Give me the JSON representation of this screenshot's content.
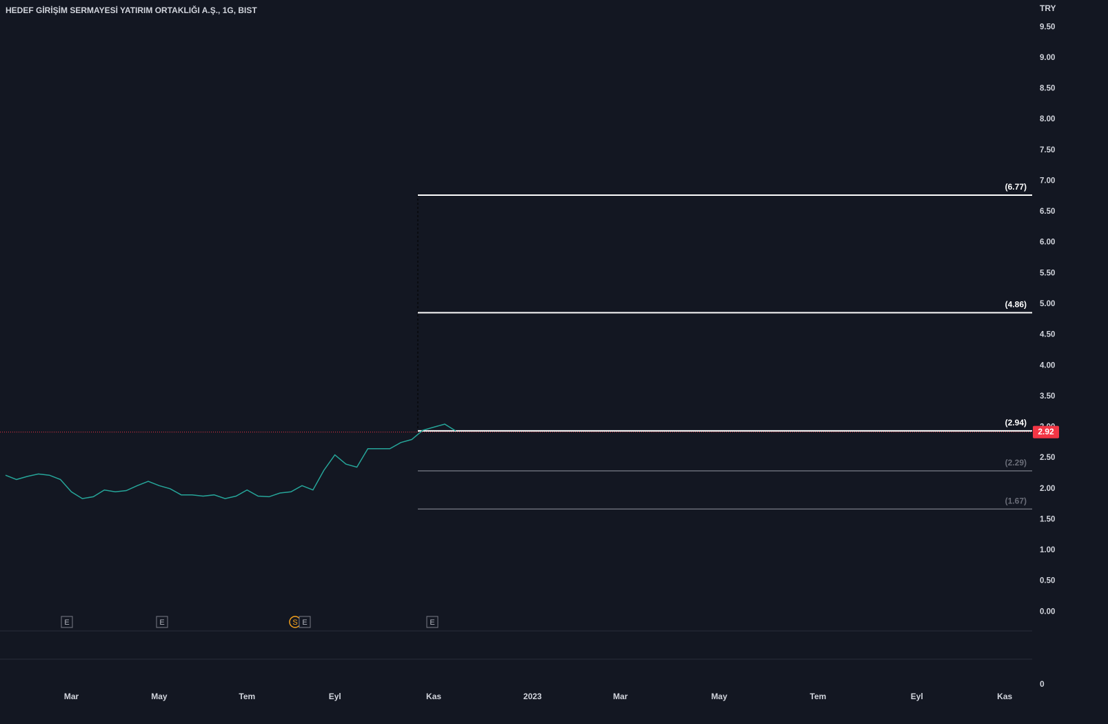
{
  "chart_data": {
    "type": "line",
    "title": "HEDEF GİRİŞİM SERMAYESİ YATIRIM ORTAKLIĞI A.Ş., 1G, BIST",
    "currency": "TRY",
    "categories": [
      null,
      null,
      null,
      null,
      null,
      null,
      "Mar",
      null,
      null,
      null,
      null,
      null,
      null,
      null,
      "May",
      null,
      null,
      null,
      null,
      null,
      null,
      null,
      "Tem",
      null,
      null,
      null,
      null,
      null,
      null,
      null,
      "Eyl",
      null,
      null,
      null,
      null,
      null,
      null,
      null,
      null,
      "Kas",
      null,
      null,
      null,
      null,
      null,
      null,
      null,
      null,
      "2023",
      null,
      null,
      null,
      null,
      null,
      null,
      null,
      "Mar",
      null,
      null,
      null,
      null,
      null,
      null,
      null,
      null,
      "May",
      null,
      null,
      null,
      null,
      null,
      null,
      null,
      null,
      "Tem",
      null,
      null,
      null,
      null,
      null,
      null,
      null,
      null,
      "Eyl",
      null,
      null,
      null,
      null,
      null,
      null,
      null,
      "Kas",
      null,
      null
    ],
    "series": [
      {
        "color": "#26a69a",
        "values": [
          2.22,
          2.15,
          2.2,
          2.24,
          2.22,
          2.15,
          1.95,
          1.84,
          1.87,
          1.98,
          1.95,
          1.97,
          2.05,
          2.12,
          2.05,
          2.0,
          1.9,
          1.9,
          1.88,
          1.9,
          1.84,
          1.88,
          1.98,
          1.88,
          1.87,
          1.93,
          1.95,
          2.05,
          1.98,
          2.3,
          2.55,
          2.4,
          2.35,
          2.65,
          2.65,
          2.65,
          2.75,
          2.8,
          2.95,
          3.0,
          3.05,
          2.94,
          null,
          null,
          null,
          null,
          null,
          null,
          null,
          null,
          null,
          null,
          null,
          null,
          null,
          null,
          null,
          null,
          null,
          null,
          null,
          null,
          null,
          null,
          null,
          null,
          null,
          null,
          null,
          null,
          null,
          null,
          null,
          null,
          null,
          null,
          null,
          null,
          null,
          null,
          null,
          null,
          null,
          null,
          null,
          null,
          null,
          null,
          null,
          null,
          null,
          null,
          null,
          null
        ]
      }
    ],
    "last_price": 2.92,
    "levels": [
      {
        "value": 6.77,
        "label": "(6.77)",
        "color": "#ffffff"
      },
      {
        "value": 4.86,
        "label": "(4.86)",
        "color": "#ffffff"
      },
      {
        "value": 2.94,
        "label": "(2.94)",
        "color": "#ffffff"
      },
      {
        "value": 2.29,
        "label": "(2.29)",
        "color": "#6a6d78"
      },
      {
        "value": 1.67,
        "label": "(1.67)",
        "color": "#6a6d78"
      }
    ],
    "ylim": [
      -0.31,
      9.94
    ],
    "yticks": [
      {
        "value": 0,
        "label": "0.00"
      },
      {
        "value": 0.5,
        "label": "0.50"
      },
      {
        "value": 1,
        "label": "1.00"
      },
      {
        "value": 1.5,
        "label": "1.50"
      },
      {
        "value": 2,
        "label": "2.00"
      },
      {
        "value": 2.5,
        "label": "2.50"
      },
      {
        "value": 3,
        "label": "3.00"
      },
      {
        "value": 3.5,
        "label": "3.50"
      },
      {
        "value": 4,
        "label": "4.00"
      },
      {
        "value": 4.5,
        "label": "4.50"
      },
      {
        "value": 5,
        "label": "5.00"
      },
      {
        "value": 5.5,
        "label": "5.50"
      },
      {
        "value": 6,
        "label": "6.00"
      },
      {
        "value": 6.5,
        "label": "6.50"
      },
      {
        "value": 7,
        "label": "7.00"
      },
      {
        "value": 7.5,
        "label": "7.50"
      },
      {
        "value": 8,
        "label": "8.00"
      },
      {
        "value": 8.5,
        "label": "8.50"
      },
      {
        "value": 9,
        "label": "9.00"
      },
      {
        "value": 9.5,
        "label": "9.50"
      }
    ],
    "lower_pane_yticks": [
      0
    ],
    "events": [
      "E",
      "E",
      "S",
      "E",
      "E"
    ]
  }
}
